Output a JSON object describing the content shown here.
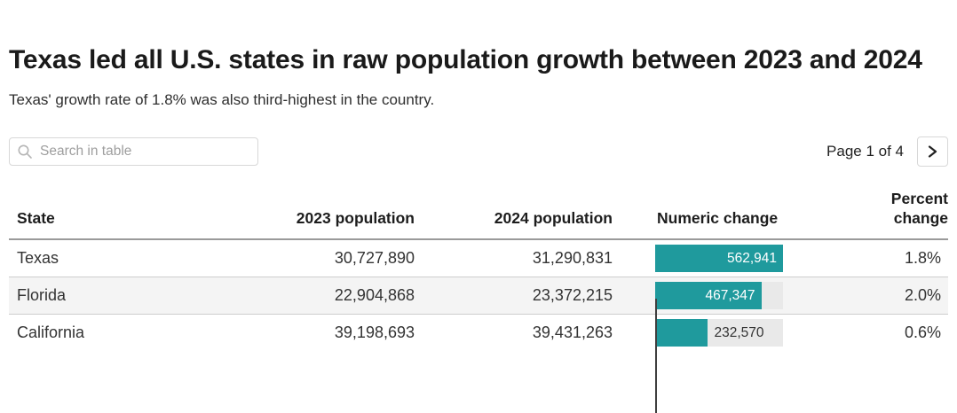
{
  "header": {
    "title": "Texas led all U.S. states in raw population growth between 2023 and 2024",
    "subtitle": "Texas' growth rate of 1.8% was also third-highest in the country."
  },
  "controls": {
    "search_placeholder": "Search in table",
    "pagination": {
      "label": "Page 1 of 4"
    }
  },
  "table": {
    "columns": [
      {
        "label": "State",
        "align": "left"
      },
      {
        "label": "2023 population",
        "align": "right"
      },
      {
        "label": "2024 population",
        "align": "right"
      },
      {
        "label": "Numeric change",
        "align": "left"
      },
      {
        "label": "Percent change",
        "align": "right"
      }
    ],
    "rows": [
      {
        "state": "Texas",
        "pop_2023": "30,727,890",
        "pop_2024": "31,290,831",
        "numeric_change": "562,941",
        "bar_pct": 100,
        "label_inside": true,
        "percent_change": "1.8%"
      },
      {
        "state": "Florida",
        "pop_2023": "22,904,868",
        "pop_2024": "23,372,215",
        "numeric_change": "467,347",
        "bar_pct": 83,
        "label_inside": true,
        "percent_change": "2.0%"
      },
      {
        "state": "California",
        "pop_2023": "39,198,693",
        "pop_2024": "39,431,263",
        "numeric_change": "232,570",
        "bar_pct": 41.3,
        "label_inside": false,
        "percent_change": "0.6%"
      }
    ]
  },
  "colors": {
    "bar": "#1F9A9D",
    "bar_track": "#e9e9e9",
    "zebra_row": "#f4f4f4"
  },
  "chart_data": {
    "type": "table",
    "title": "Texas led all U.S. states in raw population growth between 2023 and 2024",
    "subtitle": "Texas' growth rate of 1.8% was also third-highest in the country.",
    "columns": [
      "State",
      "2023 population",
      "2024 population",
      "Numeric change",
      "Percent change"
    ],
    "rows": [
      [
        "Texas",
        30727890,
        31290831,
        562941,
        "1.8%"
      ],
      [
        "Florida",
        22904868,
        23372215,
        467347,
        "2.0%"
      ],
      [
        "California",
        39198693,
        39431263,
        232570,
        "0.6%"
      ]
    ],
    "numeric_change_bar": {
      "max": 562941,
      "color": "#1F9A9D"
    },
    "pagination_visible": "Page 1 of 4"
  }
}
